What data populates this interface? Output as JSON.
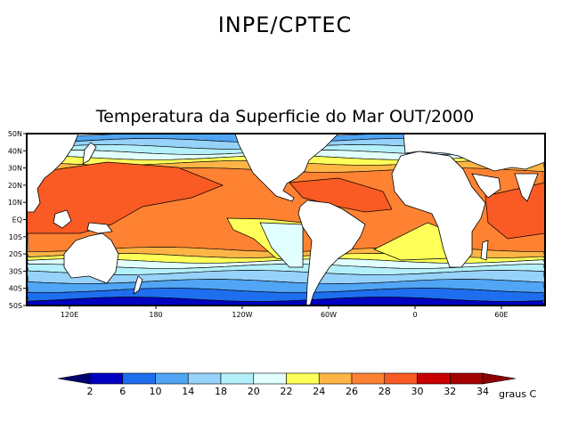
{
  "header": {
    "title": "INPE/CPTEC"
  },
  "map": {
    "title": "Temperatura da Superficie do Mar OUT/2000",
    "lat_labels": [
      "50N",
      "40N",
      "30N",
      "20N",
      "10N",
      "EQ",
      "10S",
      "20S",
      "30S",
      "40S",
      "50S"
    ],
    "lon_labels": [
      "120E",
      "180",
      "120W",
      "60W",
      "0",
      "60E"
    ]
  },
  "colorbar": {
    "labels": [
      "2",
      "6",
      "10",
      "14",
      "18",
      "20",
      "22",
      "24",
      "26",
      "28",
      "30",
      "32",
      "34"
    ],
    "unit": "graus C",
    "colors": [
      "#00006e",
      "#0000c0",
      "#1e6ef0",
      "#50a5f5",
      "#96d2fa",
      "#b4f0fa",
      "#e1ffff",
      "#ffff5a",
      "#ffb446",
      "#ff8232",
      "#fa5a23",
      "#c80000",
      "#a50000",
      "#8c0000"
    ]
  }
}
